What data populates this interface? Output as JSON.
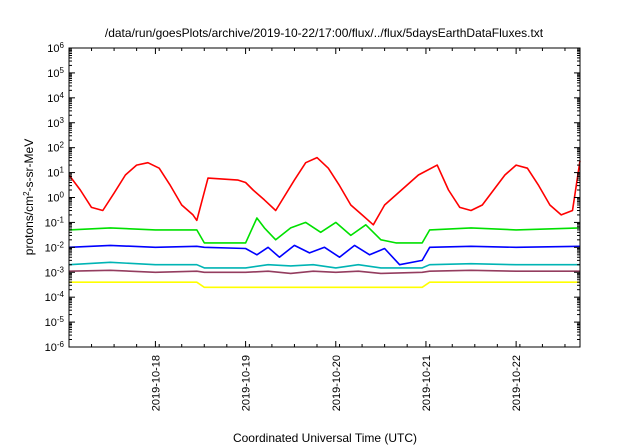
{
  "chart_data": {
    "type": "line",
    "title": "/data/run/goesPlots/archive/2019-10-22/17:00/flux/../flux/5daysEarthDataFluxes.txt",
    "xlabel": "Coordinated Universal Time (UTC)",
    "ylabel": "protons/cm2-s-sr-MeV",
    "ylabel_parts": {
      "base": "protons/cm",
      "sup": "2",
      "rest": "-s-sr-MeV"
    },
    "yscale": "log",
    "ylim_exp": [
      -6,
      6
    ],
    "ytick_exponents": [
      -6,
      -5,
      -4,
      -3,
      -2,
      -1,
      0,
      1,
      2,
      3,
      4,
      5,
      6
    ],
    "xlim": [
      "2019-10-17T01:00",
      "2019-10-22T17:00"
    ],
    "xticks": [
      {
        "date": "2019-10-18",
        "label": "2019-10-18"
      },
      {
        "date": "2019-10-19",
        "label": "2019-10-19"
      },
      {
        "date": "2019-10-20",
        "label": "2019-10-20"
      },
      {
        "date": "2019-10-21",
        "label": "2019-10-21"
      },
      {
        "date": "2019-10-22",
        "label": "2019-10-22"
      }
    ],
    "grid": false,
    "legend": false,
    "series": [
      {
        "color": "#ff0000",
        "x": [
          "2019-10-17T01:00",
          "2019-10-17T04:00",
          "2019-10-17T07:00",
          "2019-10-17T10:00",
          "2019-10-17T13:00",
          "2019-10-17T16:00",
          "2019-10-17T19:00",
          "2019-10-17T22:00",
          "2019-10-18T01:00",
          "2019-10-18T04:00",
          "2019-10-18T07:00",
          "2019-10-18T10:00",
          "2019-10-18T11:00",
          "2019-10-18T14:00",
          "2019-10-18T22:00",
          "2019-10-19T00:00",
          "2019-10-19T02:00",
          "2019-10-19T05:00",
          "2019-10-19T08:00",
          "2019-10-19T13:00",
          "2019-10-19T16:00",
          "2019-10-19T19:00",
          "2019-10-19T22:00",
          "2019-10-20T01:00",
          "2019-10-20T04:00",
          "2019-10-20T07:00",
          "2019-10-20T10:00",
          "2019-10-20T13:00",
          "2019-10-20T22:00",
          "2019-10-21T03:00",
          "2019-10-21T06:00",
          "2019-10-21T09:00",
          "2019-10-21T12:00",
          "2019-10-21T15:00",
          "2019-10-21T18:00",
          "2019-10-21T21:00",
          "2019-10-22T00:00",
          "2019-10-22T03:00",
          "2019-10-22T06:00",
          "2019-10-22T09:00",
          "2019-10-22T12:00",
          "2019-10-22T15:00",
          "2019-10-22T17:00"
        ],
        "y": [
          8,
          2,
          0.4,
          0.3,
          1.5,
          8,
          20,
          25,
          15,
          3,
          0.5,
          0.2,
          0.12,
          6,
          5,
          4,
          2,
          0.8,
          0.3,
          5,
          25,
          40,
          15,
          3,
          0.5,
          0.2,
          0.08,
          0.5,
          8,
          20,
          2,
          0.4,
          0.3,
          0.5,
          2,
          8,
          20,
          15,
          3,
          0.5,
          0.2,
          0.3,
          30
        ]
      },
      {
        "color": "#00e000",
        "x": [
          "2019-10-17T01:00",
          "2019-10-17T12:00",
          "2019-10-18T00:00",
          "2019-10-18T11:00",
          "2019-10-18T13:00",
          "2019-10-19T00:00",
          "2019-10-19T03:00",
          "2019-10-19T05:00",
          "2019-10-19T08:00",
          "2019-10-19T12:00",
          "2019-10-19T16:00",
          "2019-10-19T20:00",
          "2019-10-20T00:00",
          "2019-10-20T04:00",
          "2019-10-20T08:00",
          "2019-10-20T12:00",
          "2019-10-20T16:00",
          "2019-10-20T23:00",
          "2019-10-21T01:00",
          "2019-10-21T12:00",
          "2019-10-22T00:00",
          "2019-10-22T17:00"
        ],
        "y": [
          0.05,
          0.06,
          0.05,
          0.05,
          0.015,
          0.015,
          0.15,
          0.06,
          0.02,
          0.06,
          0.1,
          0.04,
          0.1,
          0.03,
          0.08,
          0.02,
          0.015,
          0.015,
          0.05,
          0.06,
          0.05,
          0.06
        ]
      },
      {
        "color": "#0000ff",
        "x": [
          "2019-10-17T01:00",
          "2019-10-17T12:00",
          "2019-10-18T00:00",
          "2019-10-18T11:00",
          "2019-10-18T13:00",
          "2019-10-19T00:00",
          "2019-10-19T03:00",
          "2019-10-19T06:00",
          "2019-10-19T09:00",
          "2019-10-19T13:00",
          "2019-10-19T17:00",
          "2019-10-19T21:00",
          "2019-10-20T01:00",
          "2019-10-20T05:00",
          "2019-10-20T09:00",
          "2019-10-20T13:00",
          "2019-10-20T17:00",
          "2019-10-20T23:00",
          "2019-10-21T01:00",
          "2019-10-21T12:00",
          "2019-10-22T00:00",
          "2019-10-22T17:00"
        ],
        "y": [
          0.01,
          0.012,
          0.01,
          0.011,
          0.01,
          0.009,
          0.005,
          0.01,
          0.004,
          0.012,
          0.006,
          0.01,
          0.004,
          0.012,
          0.005,
          0.009,
          0.002,
          0.003,
          0.01,
          0.011,
          0.01,
          0.011
        ]
      },
      {
        "color": "#00b4b4",
        "x": [
          "2019-10-17T01:00",
          "2019-10-17T12:00",
          "2019-10-18T00:00",
          "2019-10-18T11:00",
          "2019-10-18T13:00",
          "2019-10-19T00:00",
          "2019-10-19T06:00",
          "2019-10-19T12:00",
          "2019-10-19T18:00",
          "2019-10-20T00:00",
          "2019-10-20T06:00",
          "2019-10-20T12:00",
          "2019-10-20T23:00",
          "2019-10-21T01:00",
          "2019-10-21T12:00",
          "2019-10-22T00:00",
          "2019-10-22T17:00"
        ],
        "y": [
          0.002,
          0.0025,
          0.002,
          0.002,
          0.0015,
          0.0015,
          0.002,
          0.0018,
          0.002,
          0.0015,
          0.002,
          0.0015,
          0.0015,
          0.002,
          0.0022,
          0.002,
          0.002
        ]
      },
      {
        "color": "#943d5f",
        "x": [
          "2019-10-17T01:00",
          "2019-10-17T12:00",
          "2019-10-18T00:00",
          "2019-10-18T11:00",
          "2019-10-18T13:00",
          "2019-10-19T00:00",
          "2019-10-19T06:00",
          "2019-10-19T12:00",
          "2019-10-19T18:00",
          "2019-10-20T00:00",
          "2019-10-20T06:00",
          "2019-10-20T12:00",
          "2019-10-20T23:00",
          "2019-10-21T01:00",
          "2019-10-21T12:00",
          "2019-10-22T00:00",
          "2019-10-22T17:00"
        ],
        "y": [
          0.0011,
          0.0012,
          0.001,
          0.0011,
          0.001,
          0.001,
          0.0011,
          0.0009,
          0.0011,
          0.001,
          0.0011,
          0.0009,
          0.001,
          0.0011,
          0.0012,
          0.0011,
          0.0011
        ]
      },
      {
        "color": "#ffff00",
        "x": [
          "2019-10-17T01:00",
          "2019-10-17T12:00",
          "2019-10-18T00:00",
          "2019-10-18T11:00",
          "2019-10-18T13:00",
          "2019-10-19T00:00",
          "2019-10-19T12:00",
          "2019-10-20T00:00",
          "2019-10-20T12:00",
          "2019-10-20T23:00",
          "2019-10-21T01:00",
          "2019-10-21T12:00",
          "2019-10-22T00:00",
          "2019-10-22T17:00"
        ],
        "y": [
          0.0004,
          0.0004,
          0.0004,
          0.0004,
          0.00025,
          0.00025,
          0.00025,
          0.00025,
          0.00025,
          0.00025,
          0.0004,
          0.0004,
          0.0004,
          0.0004
        ]
      }
    ]
  }
}
